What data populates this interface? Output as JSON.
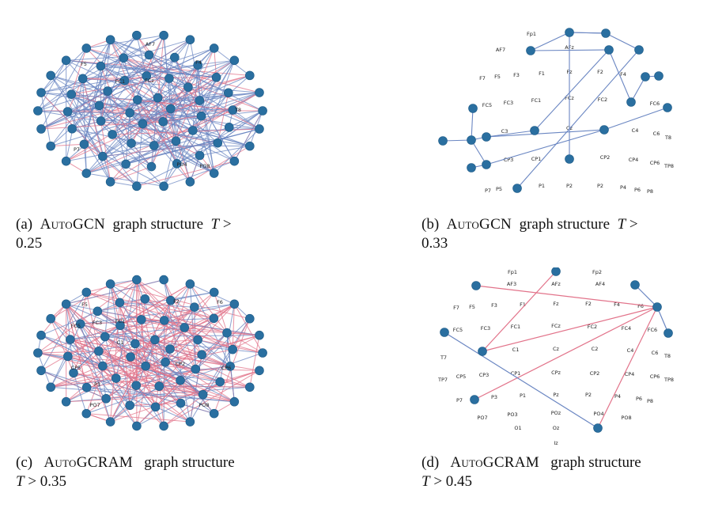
{
  "panels": [
    {
      "id": "a",
      "caption": {
        "prefix": "(a)",
        "model": "AutoGCN",
        "text": "graph structure",
        "var": "T",
        "op": ">",
        "value": "0.25"
      },
      "labels": [
        "AF7",
        "F5",
        "F4",
        "FC1",
        "FCz",
        "T8",
        "P7",
        "PO4",
        "PO8"
      ],
      "edge_colors": {
        "blue": "#6a86c2",
        "red": "#e2738a"
      }
    },
    {
      "id": "b",
      "caption": {
        "prefix": "(b)",
        "model": "AutoGCN",
        "text": "graph structure",
        "var": "T",
        "op": ">",
        "value": "0.33"
      },
      "labels": [
        "Fp1",
        "AF7",
        "AFz",
        "F7",
        "F5",
        "F3",
        "F1",
        "Fz",
        "F2",
        "F4",
        "FC5",
        "FC3",
        "FC1",
        "FCz",
        "FC2",
        "FC6",
        "C3",
        "Cz",
        "C4",
        "C6",
        "T8",
        "CP3",
        "CP1",
        "CP2",
        "CP4",
        "CP6",
        "TP8",
        "P7",
        "P5",
        "P1",
        "P2",
        "P2",
        "P4",
        "P6",
        "P8"
      ]
    },
    {
      "id": "c",
      "caption": {
        "prefix": "(c)",
        "model": "AutoGCRAM",
        "text": "graph structure",
        "var": "T",
        "op": ">",
        "value": "0.35"
      },
      "labels": [
        "F5",
        "F2",
        "F6",
        "FC3",
        "FC5",
        "FC1",
        "C1",
        "CP5",
        "CP2",
        "CP6",
        "P3",
        "PO7",
        "PO8"
      ]
    },
    {
      "id": "d",
      "caption": {
        "prefix": "(d)",
        "model": "AutoGCRAM",
        "text": "graph structure",
        "var": "T",
        "op": ">",
        "value": "0.45"
      },
      "labels": [
        "Fp1",
        "Fp2",
        "AF3",
        "AFz",
        "AF4",
        "F7",
        "F5",
        "F3",
        "F1",
        "Fz",
        "F2",
        "F4",
        "F6",
        "FC5",
        "FC3",
        "FC1",
        "FCz",
        "FC2",
        "FC4",
        "FC6",
        "T7",
        "C1",
        "Cz",
        "C2",
        "C4",
        "C6",
        "T8",
        "TP7",
        "CP5",
        "CP3",
        "CP1",
        "CPz",
        "CP2",
        "CP4",
        "CP6",
        "TP8",
        "P7",
        "P3",
        "P1",
        "Pz",
        "P2",
        "P4",
        "P6",
        "P8",
        "PO7",
        "PO3",
        "POz",
        "PO4",
        "PO8",
        "O1",
        "Oz",
        "Iz"
      ]
    }
  ],
  "node_color": "#2a6fa0"
}
